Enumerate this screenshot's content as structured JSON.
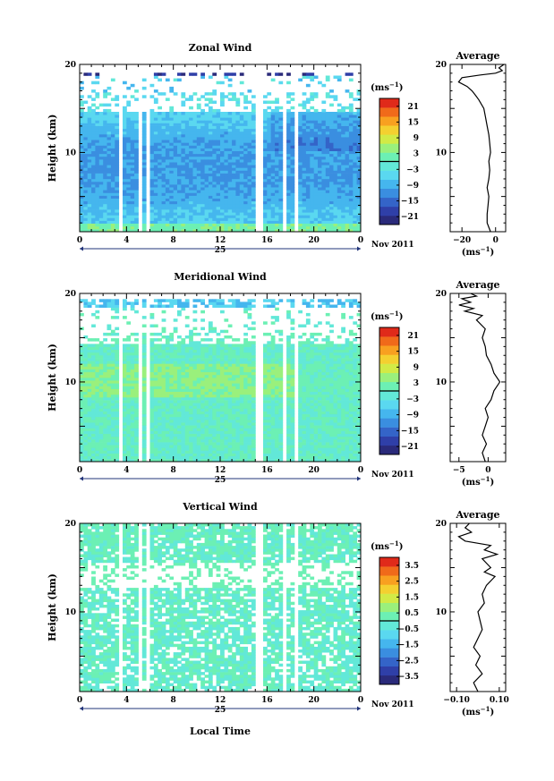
{
  "chart_data": [
    {
      "type": "heatmap",
      "title": "Zonal Wind",
      "ylabel": "Height (km)",
      "xlabel": "",
      "xlim": [
        0,
        24
      ],
      "ylim": [
        1,
        20
      ],
      "x_ticks": [
        "0",
        "4",
        "8",
        "12",
        "16",
        "20",
        "0"
      ],
      "y_ticks": [
        "10",
        "20"
      ],
      "day_label": "25",
      "date_label": "Nov 2011",
      "colorbar": {
        "unit": "(ms",
        "unit_exp": "−1",
        "unit_close": ")",
        "ticks": [
          "21",
          "15",
          "9",
          "3",
          "−3",
          "−9",
          "−15",
          "−21"
        ],
        "range": [
          -24,
          24
        ]
      },
      "average": {
        "title": "Average",
        "xlabel": "(ms",
        "xlabel_exp": "−1",
        "xlabel_close": ")",
        "x_ticks": [
          "−20",
          "0"
        ],
        "xlim": [
          -27,
          6
        ],
        "y_ticks": [
          "10",
          "20"
        ],
        "profile": [
          [
            -3,
            1
          ],
          [
            -4,
            1.5
          ],
          [
            -5,
            2
          ],
          [
            -5,
            3
          ],
          [
            -4.5,
            4
          ],
          [
            -4,
            5
          ],
          [
            -5,
            6
          ],
          [
            -4,
            7
          ],
          [
            -3.5,
            8
          ],
          [
            -4,
            9
          ],
          [
            -3,
            10
          ],
          [
            -3.5,
            11
          ],
          [
            -4,
            12
          ],
          [
            -5,
            13
          ],
          [
            -6,
            14
          ],
          [
            -7,
            15
          ],
          [
            -10,
            16
          ],
          [
            -12,
            16.5
          ],
          [
            -14,
            17
          ],
          [
            -17,
            17.5
          ],
          [
            -22,
            18
          ],
          [
            -20,
            18.5
          ],
          [
            -9,
            18.8
          ],
          [
            0,
            19
          ],
          [
            4,
            19.3
          ],
          [
            2,
            19.6
          ],
          [
            5,
            20
          ]
        ]
      }
    },
    {
      "type": "heatmap",
      "title": "Meridional Wind",
      "ylabel": "Height (km)",
      "xlabel": "",
      "xlim": [
        0,
        24
      ],
      "ylim": [
        1,
        20
      ],
      "x_ticks": [
        "0",
        "4",
        "8",
        "12",
        "16",
        "20",
        "0"
      ],
      "y_ticks": [
        "10",
        "20"
      ],
      "day_label": "25",
      "date_label": "Nov 2011",
      "colorbar": {
        "unit": "(ms",
        "unit_exp": "−1",
        "unit_close": ")",
        "ticks": [
          "21",
          "15",
          "9",
          "3",
          "−3",
          "−9",
          "−15",
          "−21"
        ],
        "range": [
          -24,
          24
        ]
      },
      "average": {
        "title": "Average",
        "xlabel": "(ms",
        "xlabel_exp": "−1",
        "xlabel_close": ")",
        "x_ticks": [
          "−5",
          "0"
        ],
        "xlim": [
          -6.5,
          3
        ],
        "y_ticks": [
          "10",
          "20"
        ],
        "profile": [
          [
            -0.5,
            1
          ],
          [
            -1,
            2
          ],
          [
            -0.3,
            3
          ],
          [
            -1,
            4
          ],
          [
            -0.5,
            5
          ],
          [
            0,
            6
          ],
          [
            -0.5,
            7
          ],
          [
            0.5,
            8
          ],
          [
            1,
            9
          ],
          [
            2,
            10
          ],
          [
            1,
            11
          ],
          [
            0.5,
            12
          ],
          [
            -0.3,
            13
          ],
          [
            -0.5,
            14
          ],
          [
            -1,
            15
          ],
          [
            -0.5,
            16
          ],
          [
            -2,
            17
          ],
          [
            -1,
            17.5
          ],
          [
            -4,
            18
          ],
          [
            -2.5,
            18.3
          ],
          [
            -5,
            18.7
          ],
          [
            -3,
            19
          ],
          [
            -4.5,
            19.4
          ],
          [
            -2,
            19.7
          ],
          [
            -3,
            20
          ]
        ]
      }
    },
    {
      "type": "heatmap",
      "title": "Vertical Wind",
      "ylabel": "Height (km)",
      "xlabel": "Local Time",
      "xlim": [
        0,
        24
      ],
      "ylim": [
        1,
        20
      ],
      "x_ticks": [
        "0",
        "4",
        "8",
        "12",
        "16",
        "20",
        "0"
      ],
      "y_ticks": [
        "10",
        "20"
      ],
      "day_label": "25",
      "date_label": "Nov 2011",
      "colorbar": {
        "unit": "(ms",
        "unit_exp": "−1",
        "unit_close": ")",
        "ticks": [
          "3.5",
          "2.5",
          "1.5",
          "0.5",
          "−0.5",
          "−1.5",
          "−2.5",
          "−3.5"
        ],
        "range": [
          -4,
          4
        ]
      },
      "average": {
        "title": "Average",
        "xlabel": "(ms",
        "xlabel_exp": "−1",
        "xlabel_close": ")",
        "x_ticks": [
          "−0.10",
          "0.10"
        ],
        "xlim": [
          -0.13,
          0.13
        ],
        "y_ticks": [
          "10",
          "20"
        ],
        "profile": [
          [
            0,
            1
          ],
          [
            -0.02,
            2
          ],
          [
            0.02,
            3
          ],
          [
            -0.01,
            4
          ],
          [
            0.01,
            5
          ],
          [
            -0.02,
            6
          ],
          [
            0.0,
            7
          ],
          [
            0.02,
            8
          ],
          [
            0.01,
            9
          ],
          [
            0.0,
            10
          ],
          [
            0.03,
            11
          ],
          [
            0.02,
            12
          ],
          [
            0.04,
            13
          ],
          [
            0.08,
            14
          ],
          [
            0.03,
            14.5
          ],
          [
            0.06,
            15
          ],
          [
            0.02,
            16
          ],
          [
            0.09,
            16.5
          ],
          [
            0.03,
            17
          ],
          [
            0.06,
            17.5
          ],
          [
            -0.06,
            18
          ],
          [
            -0.09,
            18.5
          ],
          [
            -0.03,
            19
          ],
          [
            -0.06,
            19.5
          ],
          [
            -0.04,
            20
          ]
        ]
      }
    }
  ]
}
